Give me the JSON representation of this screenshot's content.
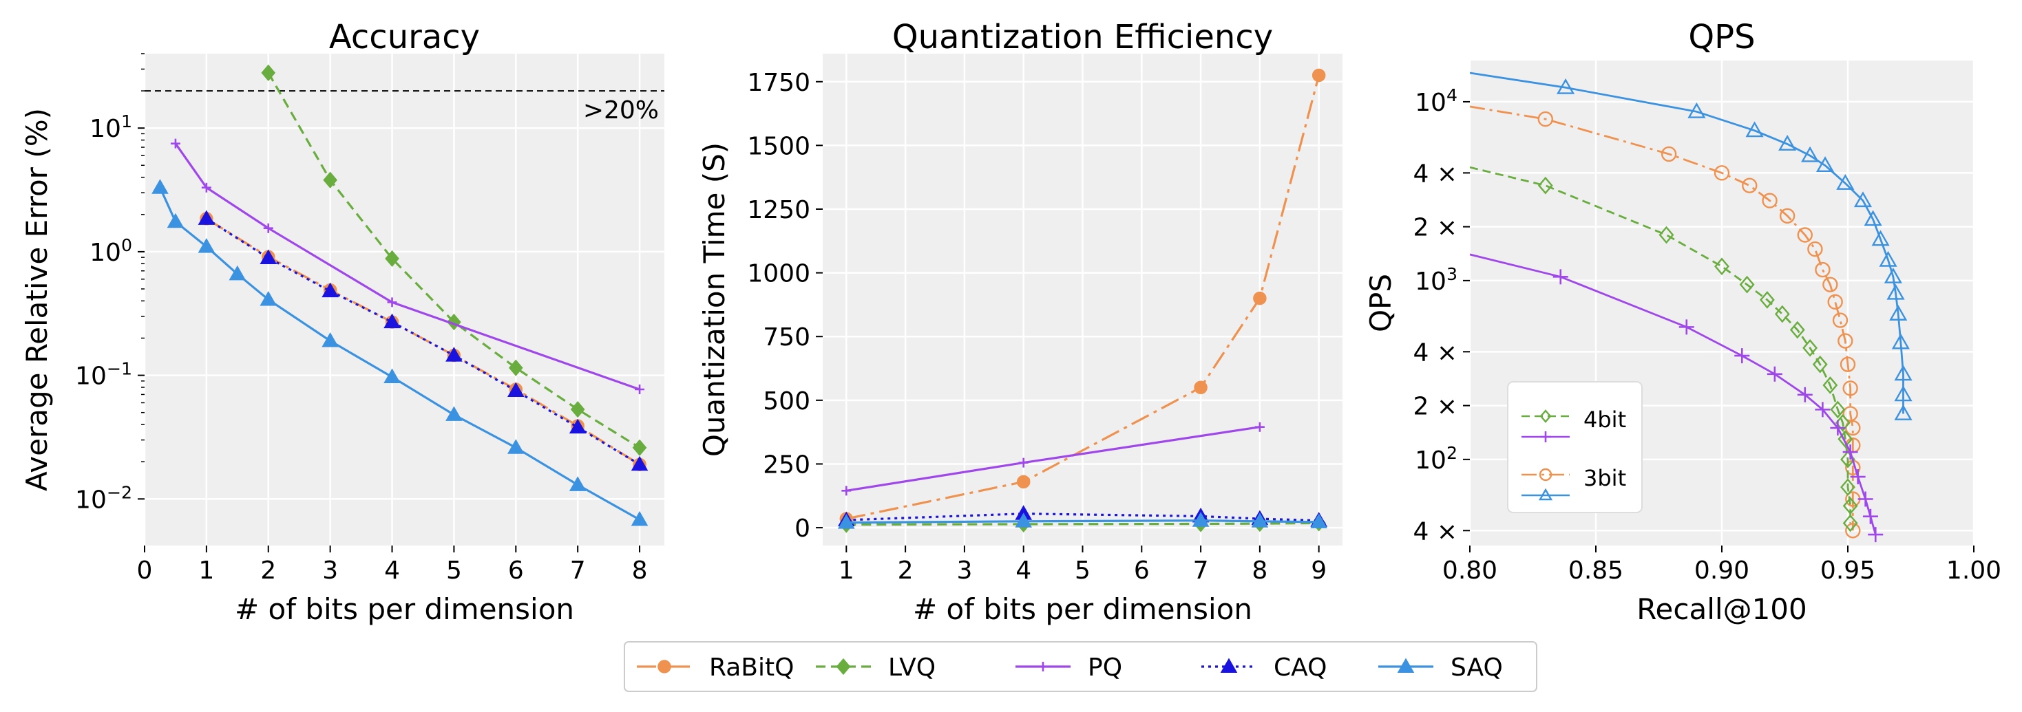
{
  "colors": {
    "RaBitQ": "#f0924f",
    "LVQ": "#68ad3d",
    "PQ": "#9f47ea",
    "CAQ": "#1a13e0",
    "SAQ": "#3a92e0",
    "panel_bg": "#efefef"
  },
  "legend": {
    "position": "bottom-center",
    "entries": [
      "RaBitQ",
      "LVQ",
      "PQ",
      "CAQ",
      "SAQ"
    ]
  },
  "chart_data": [
    {
      "type": "line",
      "title": "Accuracy",
      "xlabel": "# of bits per dimension",
      "ylabel": "Average Relative Error (%)",
      "yscale": "log",
      "xlim": [
        0,
        8.4
      ],
      "ylim": [
        0.0042,
        40
      ],
      "xticks": [
        0,
        1,
        2,
        3,
        4,
        5,
        6,
        7,
        8
      ],
      "yticks": [
        {
          "value": 10,
          "label": "10",
          "exp": "1"
        },
        {
          "value": 1,
          "label": "10",
          "exp": "0"
        },
        {
          "value": 0.1,
          "label": "10",
          "exp": "−1"
        },
        {
          "value": 0.01,
          "label": "10",
          "exp": "−2"
        }
      ],
      "grid": true,
      "annotation": {
        "text": ">20%",
        "y": 20
      },
      "series": [
        {
          "name": "LVQ",
          "x": [
            2,
            3,
            4,
            5,
            6,
            7,
            8
          ],
          "y": [
            28,
            3.8,
            0.88,
            0.27,
            0.115,
            0.053,
            0.026
          ]
        },
        {
          "name": "PQ",
          "x": [
            0.5,
            1,
            2,
            4,
            8
          ],
          "y": [
            7.5,
            3.3,
            1.55,
            0.39,
            0.077
          ]
        },
        {
          "name": "RaBitQ",
          "x": [
            1,
            2,
            3,
            4,
            5,
            6,
            7,
            8
          ],
          "y": [
            1.85,
            0.91,
            0.49,
            0.27,
            0.145,
            0.077,
            0.039,
            0.019
          ]
        },
        {
          "name": "CAQ",
          "x": [
            1,
            2,
            3,
            4,
            5,
            6,
            7,
            8
          ],
          "y": [
            1.85,
            0.89,
            0.48,
            0.27,
            0.145,
            0.075,
            0.038,
            0.019
          ]
        },
        {
          "name": "SAQ",
          "x": [
            0.25,
            0.5,
            1,
            1.5,
            2,
            3,
            4,
            5,
            6,
            7,
            8
          ],
          "y": [
            3.3,
            1.75,
            1.1,
            0.66,
            0.41,
            0.19,
            0.097,
            0.048,
            0.026,
            0.013,
            0.0068
          ]
        }
      ]
    },
    {
      "type": "line",
      "title": "Quantization Efficiency",
      "xlabel": "# of bits per dimension",
      "ylabel": "Quantization Time (S)",
      "yscale": "linear",
      "xlim": [
        0.6,
        9.4
      ],
      "ylim": [
        -70,
        1860
      ],
      "xticks": [
        1,
        2,
        3,
        4,
        5,
        6,
        7,
        8,
        9
      ],
      "yticks": [
        0,
        250,
        500,
        750,
        1000,
        1250,
        1500,
        1750
      ],
      "grid": true,
      "series": [
        {
          "name": "RaBitQ",
          "x": [
            1,
            4,
            7,
            8,
            9
          ],
          "y": [
            35,
            180,
            550,
            900,
            1775
          ]
        },
        {
          "name": "LVQ",
          "x": [
            1,
            4,
            7,
            8,
            9
          ],
          "y": [
            12,
            14,
            15,
            16,
            18
          ]
        },
        {
          "name": "PQ",
          "x": [
            1,
            4,
            8
          ],
          "y": [
            145,
            255,
            395
          ]
        },
        {
          "name": "CAQ",
          "x": [
            1,
            4,
            7,
            8,
            9
          ],
          "y": [
            30,
            55,
            45,
            35,
            28
          ]
        },
        {
          "name": "SAQ",
          "x": [
            1,
            4,
            7,
            8,
            9
          ],
          "y": [
            20,
            25,
            28,
            25,
            22
          ]
        }
      ]
    },
    {
      "type": "line",
      "title": "QPS",
      "xlabel": "Recall@100",
      "ylabel": "QPS",
      "yscale": "log",
      "xlim": [
        0.8,
        1.0
      ],
      "ylim": [
        33,
        17000
      ],
      "xticks": [
        {
          "value": 0.8,
          "label": "0.80"
        },
        {
          "value": 0.85,
          "label": "0.85"
        },
        {
          "value": 0.9,
          "label": "0.90"
        },
        {
          "value": 0.95,
          "label": "0.95"
        },
        {
          "value": 1.0,
          "label": "1.00"
        }
      ],
      "yticks": [
        {
          "value": 10000,
          "label": "10",
          "exp": "4"
        },
        {
          "value": 4000,
          "label": "4 ×",
          "exp": ""
        },
        {
          "value": 2000,
          "label": "2 ×",
          "exp": ""
        },
        {
          "value": 1000,
          "label": "10",
          "exp": "3"
        },
        {
          "value": 400,
          "label": "4 ×",
          "exp": ""
        },
        {
          "value": 200,
          "label": "2 ×",
          "exp": ""
        },
        {
          "value": 100,
          "label": "10",
          "exp": "2"
        },
        {
          "value": 40,
          "label": "4 ×",
          "exp": ""
        }
      ],
      "grid": true,
      "legend": {
        "position": "lower-left",
        "entries": [
          {
            "label": "4bit",
            "series": "LVQ"
          },
          {
            "label": "",
            "series": "PQ"
          },
          {
            "label": "3bit",
            "series": "RaBitQ"
          },
          {
            "label": "",
            "series": "SAQ"
          }
        ]
      },
      "series": [
        {
          "name": "SAQ",
          "marker": "triangle-open",
          "x": [
            0.8,
            0.838,
            0.89,
            0.913,
            0.926,
            0.935,
            0.941,
            0.949,
            0.956,
            0.96,
            0.963,
            0.966,
            0.968,
            0.969,
            0.97,
            0.971,
            0.972,
            0.972,
            0.972
          ],
          "y": [
            14500,
            12000,
            8800,
            6900,
            5800,
            5000,
            4400,
            3500,
            2800,
            2200,
            1700,
            1300,
            1050,
            850,
            650,
            450,
            300,
            230,
            180
          ]
        },
        {
          "name": "RaBitQ",
          "marker": "circle-open",
          "x": [
            0.8,
            0.83,
            0.879,
            0.9,
            0.911,
            0.919,
            0.926,
            0.933,
            0.937,
            0.94,
            0.943,
            0.945,
            0.947,
            0.949,
            0.95,
            0.951,
            0.951,
            0.952,
            0.952,
            0.952,
            0.952,
            0.952
          ],
          "y": [
            9400,
            8000,
            5100,
            4000,
            3400,
            2800,
            2300,
            1800,
            1500,
            1150,
            950,
            760,
            600,
            460,
            340,
            250,
            180,
            150,
            120,
            90,
            60,
            40
          ]
        },
        {
          "name": "LVQ",
          "marker": "diamond-open",
          "x": [
            0.8,
            0.83,
            0.878,
            0.9,
            0.91,
            0.918,
            0.924,
            0.93,
            0.935,
            0.939,
            0.943,
            0.946,
            0.948,
            0.949,
            0.95,
            0.95,
            0.951,
            0.951
          ],
          "y": [
            4300,
            3400,
            1800,
            1200,
            950,
            780,
            650,
            530,
            420,
            340,
            260,
            190,
            160,
            130,
            100,
            70,
            55,
            44
          ]
        },
        {
          "name": "PQ",
          "marker": "plus",
          "x": [
            0.8,
            0.836,
            0.886,
            0.908,
            0.921,
            0.933,
            0.94,
            0.946,
            0.951,
            0.954,
            0.957,
            0.959,
            0.961
          ],
          "y": [
            1400,
            1050,
            550,
            380,
            300,
            230,
            190,
            150,
            110,
            80,
            60,
            48,
            38
          ]
        }
      ]
    }
  ]
}
